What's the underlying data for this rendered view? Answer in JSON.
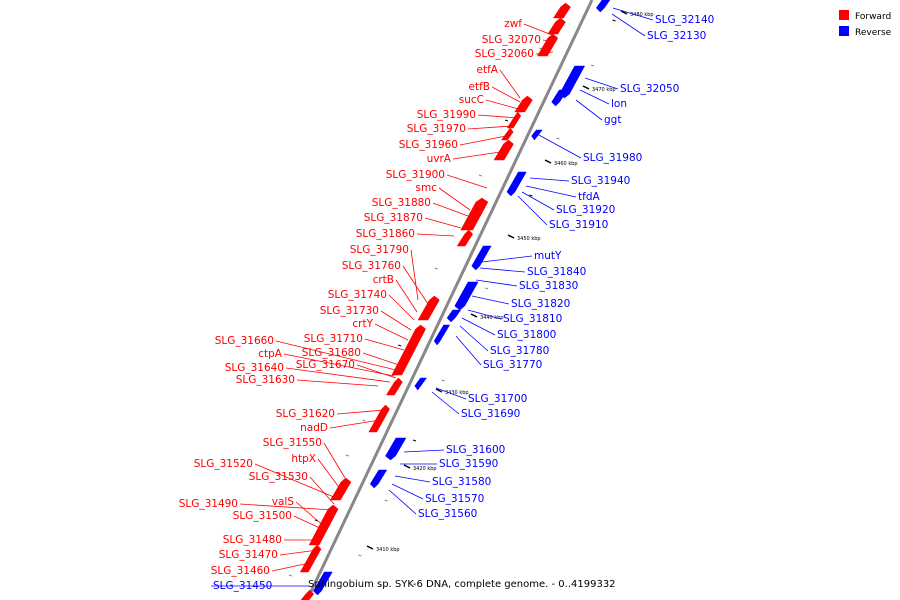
{
  "caption": "Sphingobium sp. SYK-6 DNA, complete genome. - 0..4199332",
  "legend": [
    {
      "label": "Forward",
      "color": "#ff0000"
    },
    {
      "label": "Reverse",
      "color": "#0000ff"
    }
  ],
  "colors": {
    "forward": "#ff0000",
    "reverse": "#0000ff",
    "axis": "#888888"
  },
  "kbp_marks": [
    {
      "kbp": 3410,
      "label": "3410 kbp"
    },
    {
      "kbp": 3420,
      "label": "3420 kbp"
    },
    {
      "kbp": 3430,
      "label": "3430 kbp"
    },
    {
      "kbp": 3440,
      "label": "3440 kbp"
    },
    {
      "kbp": 3450,
      "label": "3450 kbp"
    },
    {
      "kbp": 3460,
      "label": "3460 kbp"
    },
    {
      "kbp": 3470,
      "label": "3470 kbp"
    },
    {
      "kbp": 3480,
      "label": "3480 kbp"
    }
  ],
  "forward_labels": [
    "zwf",
    "SLG_32070",
    "SLG_32060",
    "etfA",
    "etfB",
    "sucC",
    "SLG_31990",
    "SLG_31970",
    "SLG_31960",
    "uvrA",
    "SLG_31900",
    "smc",
    "SLG_31880",
    "SLG_31870",
    "SLG_31860",
    "SLG_31790",
    "SLG_31760",
    "crtB",
    "SLG_31740",
    "SLG_31730",
    "crtY",
    "SLG_31660",
    "SLG_31710",
    "ctpA",
    "SLG_31680",
    "SLG_31640",
    "SLG_31670",
    "SLG_31630",
    "SLG_31620",
    "nadD",
    "SLG_31550",
    "htpX",
    "SLG_31520",
    "SLG_31530",
    "SLG_31490",
    "valS",
    "SLG_31500",
    "SLG_31480",
    "SLG_31470",
    "SLG_31460"
  ],
  "reverse_labels": [
    "SLG_32140",
    "SLG_32130",
    "SLG_32050",
    "lon",
    "ggt",
    "SLG_31980",
    "SLG_31940",
    "tfdA",
    "SLG_31920",
    "SLG_31910",
    "mutY",
    "SLG_31840",
    "SLG_31830",
    "SLG_31820",
    "SLG_31810",
    "SLG_31800",
    "SLG_31780",
    "SLG_31770",
    "SLG_31700",
    "SLG_31690",
    "SLG_31600",
    "SLG_31590",
    "SLG_31580",
    "SLG_31570",
    "SLG_31560",
    "SLG_31450"
  ]
}
